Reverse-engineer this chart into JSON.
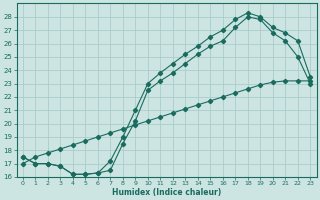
{
  "xlabel": "Humidex (Indice chaleur)",
  "xlim": [
    -0.5,
    23.5
  ],
  "ylim": [
    16,
    29
  ],
  "yticks": [
    16,
    17,
    18,
    19,
    20,
    21,
    22,
    23,
    24,
    25,
    26,
    27,
    28
  ],
  "xticks": [
    0,
    1,
    2,
    3,
    4,
    5,
    6,
    7,
    8,
    9,
    10,
    11,
    12,
    13,
    14,
    15,
    16,
    17,
    18,
    19,
    20,
    21,
    22,
    23
  ],
  "bg_color": "#cce5e3",
  "grid_color": "#aaccca",
  "line_color": "#1a6b5e",
  "curve1_x": [
    0,
    1,
    2,
    3,
    4,
    5,
    6,
    7,
    8,
    9,
    10,
    11,
    12,
    13,
    14,
    15,
    16,
    17,
    18,
    19,
    20,
    21,
    22,
    23
  ],
  "curve1_y": [
    17.5,
    17.0,
    17.0,
    16.8,
    16.2,
    16.2,
    16.3,
    16.5,
    18.5,
    20.2,
    22.5,
    23.2,
    23.8,
    24.5,
    25.2,
    25.8,
    26.2,
    27.2,
    28.0,
    27.8,
    26.8,
    26.2,
    25.0,
    23.0
  ],
  "curve2_x": [
    0,
    1,
    2,
    3,
    4,
    5,
    6,
    7,
    8,
    9,
    10,
    11,
    12,
    13,
    14,
    15,
    16,
    17,
    18,
    19,
    20,
    21,
    22,
    23
  ],
  "curve2_y": [
    17.5,
    17.0,
    17.0,
    16.8,
    16.2,
    16.2,
    16.3,
    17.2,
    19.0,
    21.0,
    23.0,
    23.8,
    24.5,
    25.2,
    25.8,
    26.5,
    27.0,
    27.8,
    28.3,
    28.0,
    27.2,
    26.8,
    26.2,
    23.5
  ],
  "curve3_x": [
    0,
    1,
    2,
    3,
    4,
    5,
    6,
    7,
    8,
    9,
    10,
    11,
    12,
    13,
    14,
    15,
    16,
    17,
    18,
    19,
    20,
    21,
    22,
    23
  ],
  "curve3_y": [
    17.0,
    17.5,
    17.8,
    18.1,
    18.4,
    18.7,
    19.0,
    19.3,
    19.6,
    19.9,
    20.2,
    20.5,
    20.8,
    21.1,
    21.4,
    21.7,
    22.0,
    22.3,
    22.6,
    22.9,
    23.1,
    23.2,
    23.2,
    23.2
  ]
}
